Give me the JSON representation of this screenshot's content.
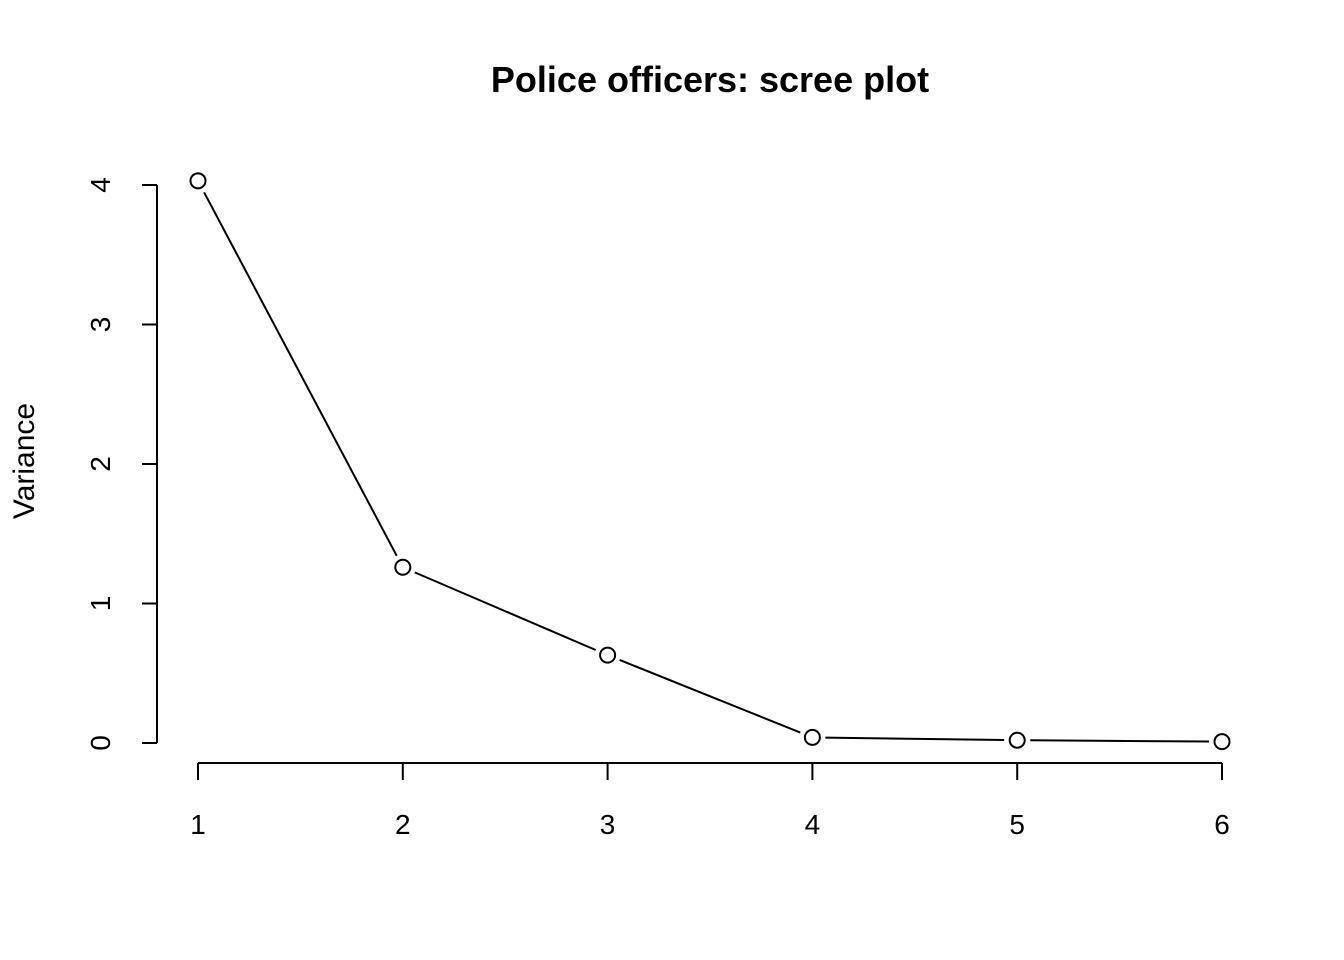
{
  "chart_data": {
    "type": "line",
    "title": "Police officers: scree plot",
    "xlabel": "",
    "ylabel": "Variance",
    "x": [
      1,
      2,
      3,
      4,
      5,
      6
    ],
    "values": [
      4.03,
      1.26,
      0.63,
      0.04,
      0.02,
      0.01
    ],
    "xticks": [
      "1",
      "2",
      "3",
      "4",
      "5",
      "6"
    ],
    "yticks": [
      "0",
      "1",
      "2",
      "3",
      "4"
    ],
    "ylim": [
      0,
      4
    ],
    "xlim": [
      1,
      6
    ],
    "grid": false,
    "markers": "open-circle",
    "colors": {
      "line": "#000000",
      "marker_fill": "#ffffff"
    }
  }
}
